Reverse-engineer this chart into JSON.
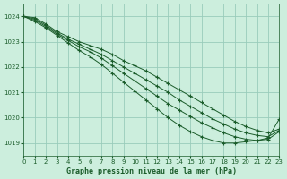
{
  "title": "Graphe pression niveau de la mer (hPa)",
  "bg_color": "#cceedd",
  "grid_color": "#99ccbb",
  "line_color": "#1a5c2a",
  "xlim": [
    0,
    23
  ],
  "ylim": [
    1018.5,
    1024.5
  ],
  "yticks": [
    1019,
    1020,
    1021,
    1022,
    1023,
    1024
  ],
  "xticks": [
    0,
    1,
    2,
    3,
    4,
    5,
    6,
    7,
    8,
    9,
    10,
    11,
    12,
    13,
    14,
    15,
    16,
    17,
    18,
    19,
    20,
    21,
    22,
    23
  ],
  "series": [
    [
      1024.0,
      1023.95,
      1023.7,
      1023.4,
      1023.2,
      1023.0,
      1022.85,
      1022.7,
      1022.5,
      1022.25,
      1022.05,
      1021.85,
      1021.6,
      1021.35,
      1021.1,
      1020.85,
      1020.6,
      1020.35,
      1020.1,
      1019.85,
      1019.65,
      1019.5,
      1019.4,
      1019.55
    ],
    [
      1024.0,
      1023.9,
      1023.65,
      1023.35,
      1023.1,
      1022.9,
      1022.7,
      1022.5,
      1022.25,
      1022.0,
      1021.75,
      1021.5,
      1021.25,
      1021.0,
      1020.7,
      1020.45,
      1020.2,
      1019.95,
      1019.75,
      1019.55,
      1019.4,
      1019.3,
      1019.25,
      1019.5
    ],
    [
      1024.0,
      1023.85,
      1023.6,
      1023.3,
      1023.05,
      1022.8,
      1022.6,
      1022.35,
      1022.05,
      1021.75,
      1021.45,
      1021.15,
      1020.85,
      1020.55,
      1020.3,
      1020.05,
      1019.8,
      1019.6,
      1019.4,
      1019.25,
      1019.15,
      1019.1,
      1019.15,
      1019.45
    ],
    [
      1024.0,
      1023.8,
      1023.55,
      1023.25,
      1022.95,
      1022.65,
      1022.4,
      1022.1,
      1021.75,
      1021.4,
      1021.05,
      1020.7,
      1020.35,
      1020.0,
      1019.7,
      1019.45,
      1019.25,
      1019.1,
      1019.0,
      1019.0,
      1019.05,
      1019.1,
      1019.2,
      1019.95
    ]
  ]
}
